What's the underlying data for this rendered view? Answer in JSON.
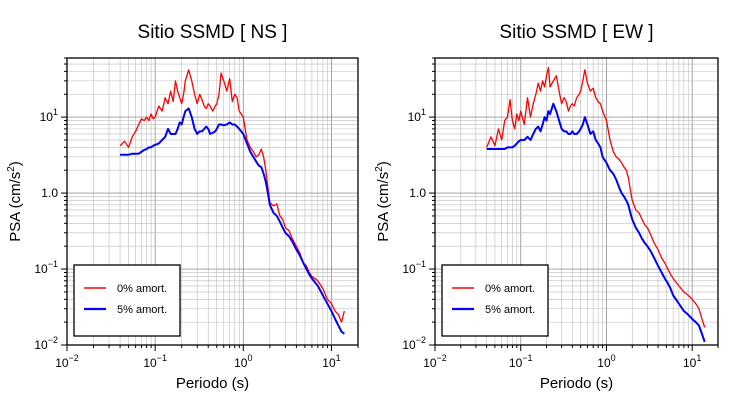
{
  "chart_data": [
    {
      "type": "line",
      "title": "Sitio SSMD [ NS ]",
      "xlabel": "Periodo (s)",
      "ylabel": "PSA (cm/s²)",
      "xscale": "log",
      "yscale": "log",
      "xlim": [
        0.01,
        20
      ],
      "ylim": [
        0.01,
        60
      ],
      "grid": true,
      "legend_position": "bottom-left",
      "xticks": [
        {
          "value": 0.01,
          "base": "10",
          "exp": "−2"
        },
        {
          "value": 0.1,
          "base": "10",
          "exp": "−1"
        },
        {
          "value": 1,
          "base": "10",
          "exp": "0"
        },
        {
          "value": 10,
          "base": "10",
          "exp": "1"
        }
      ],
      "yticks": [
        {
          "value": 0.01,
          "base": "10",
          "exp": "−2"
        },
        {
          "value": 0.1,
          "base": "10",
          "exp": "−1"
        },
        {
          "value": 1,
          "base": "1",
          "exp": ".0"
        },
        {
          "value": 10,
          "base": "10",
          "exp": "1"
        }
      ],
      "series": [
        {
          "name": "0% amort.",
          "color": "#ff0000",
          "x": [
            0.04,
            0.045,
            0.05,
            0.055,
            0.06,
            0.065,
            0.07,
            0.075,
            0.08,
            0.085,
            0.09,
            0.095,
            0.1,
            0.11,
            0.12,
            0.13,
            0.14,
            0.15,
            0.16,
            0.17,
            0.18,
            0.19,
            0.2,
            0.21,
            0.22,
            0.24,
            0.26,
            0.28,
            0.3,
            0.32,
            0.34,
            0.36,
            0.38,
            0.4,
            0.42,
            0.45,
            0.48,
            0.5,
            0.53,
            0.56,
            0.6,
            0.65,
            0.7,
            0.75,
            0.8,
            0.85,
            0.9,
            1.0,
            1.1,
            1.2,
            1.3,
            1.4,
            1.5,
            1.6,
            1.7,
            1.8,
            1.9,
            2.0,
            2.2,
            2.4,
            2.6,
            2.8,
            3.0,
            3.3,
            3.6,
            4.0,
            4.4,
            4.8,
            5.2,
            5.6,
            6.0,
            7.0,
            8.0,
            9.0,
            10.0,
            11.0,
            12.0,
            13.0,
            14.0
          ],
          "y": [
            4.2,
            4.8,
            4.0,
            5.5,
            6.5,
            8.0,
            9.5,
            9.0,
            10.0,
            9.0,
            11.0,
            9.5,
            10.0,
            14.0,
            12.0,
            18.0,
            15.0,
            22.0,
            16.0,
            30.0,
            22.0,
            18.0,
            15.0,
            20.0,
            30.0,
            42.0,
            30.0,
            20.0,
            15.0,
            20.0,
            17.0,
            14.0,
            13.0,
            15.0,
            14.0,
            12.0,
            14.0,
            15.0,
            20.0,
            38.0,
            30.0,
            22.0,
            32.0,
            16.0,
            20.0,
            18.0,
            12.0,
            10.0,
            5.0,
            4.0,
            3.5,
            3.0,
            3.2,
            3.8,
            3.0,
            2.0,
            1.2,
            0.75,
            0.68,
            0.72,
            0.5,
            0.45,
            0.35,
            0.32,
            0.25,
            0.2,
            0.16,
            0.12,
            0.11,
            0.09,
            0.08,
            0.07,
            0.055,
            0.04,
            0.035,
            0.028,
            0.025,
            0.02,
            0.028
          ]
        },
        {
          "name": "5% amort.",
          "color": "#0000ff",
          "x": [
            0.04,
            0.045,
            0.05,
            0.055,
            0.06,
            0.065,
            0.07,
            0.075,
            0.08,
            0.085,
            0.09,
            0.095,
            0.1,
            0.11,
            0.12,
            0.13,
            0.14,
            0.15,
            0.16,
            0.17,
            0.18,
            0.19,
            0.2,
            0.21,
            0.22,
            0.24,
            0.26,
            0.28,
            0.3,
            0.32,
            0.34,
            0.36,
            0.38,
            0.4,
            0.42,
            0.45,
            0.48,
            0.5,
            0.53,
            0.56,
            0.6,
            0.65,
            0.7,
            0.75,
            0.8,
            0.85,
            0.9,
            1.0,
            1.1,
            1.2,
            1.3,
            1.4,
            1.5,
            1.6,
            1.7,
            1.8,
            1.9,
            2.0,
            2.2,
            2.4,
            2.6,
            2.8,
            3.0,
            3.3,
            3.6,
            4.0,
            4.4,
            4.8,
            5.2,
            5.6,
            6.0,
            7.0,
            8.0,
            9.0,
            10.0,
            11.0,
            12.0,
            13.0,
            14.0
          ],
          "y": [
            3.2,
            3.2,
            3.2,
            3.3,
            3.3,
            3.3,
            3.5,
            3.7,
            3.8,
            4.0,
            4.0,
            4.2,
            4.3,
            4.5,
            5.0,
            5.5,
            7.0,
            6.0,
            6.0,
            6.0,
            7.0,
            8.5,
            8.0,
            10.0,
            12.0,
            13.0,
            10.0,
            7.0,
            6.0,
            6.5,
            6.5,
            7.0,
            7.5,
            7.0,
            6.0,
            6.2,
            6.5,
            7.0,
            8.0,
            8.0,
            7.8,
            8.0,
            8.5,
            8.0,
            8.0,
            7.5,
            7.0,
            6.0,
            4.5,
            3.5,
            3.0,
            2.6,
            2.3,
            2.2,
            1.8,
            1.4,
            1.0,
            0.7,
            0.55,
            0.5,
            0.42,
            0.35,
            0.3,
            0.27,
            0.23,
            0.18,
            0.15,
            0.12,
            0.1,
            0.085,
            0.075,
            0.06,
            0.045,
            0.035,
            0.028,
            0.022,
            0.018,
            0.015,
            0.014
          ]
        }
      ]
    },
    {
      "type": "line",
      "title": "Sitio SSMD [ EW ]",
      "xlabel": "Periodo (s)",
      "ylabel": "PSA (cm/s²)",
      "xscale": "log",
      "yscale": "log",
      "xlim": [
        0.01,
        20
      ],
      "ylim": [
        0.01,
        60
      ],
      "grid": true,
      "legend_position": "bottom-left",
      "xticks": [
        {
          "value": 0.01,
          "base": "10",
          "exp": "−2"
        },
        {
          "value": 0.1,
          "base": "10",
          "exp": "−1"
        },
        {
          "value": 1,
          "base": "10",
          "exp": "0"
        },
        {
          "value": 10,
          "base": "10",
          "exp": "1"
        }
      ],
      "yticks": [
        {
          "value": 0.01,
          "base": "10",
          "exp": "−2"
        },
        {
          "value": 0.1,
          "base": "10",
          "exp": "−1"
        },
        {
          "value": 1,
          "base": "1",
          "exp": ".0"
        },
        {
          "value": 10,
          "base": "10",
          "exp": "1"
        }
      ],
      "series": [
        {
          "name": "0% amort.",
          "color": "#ff0000",
          "x": [
            0.04,
            0.045,
            0.05,
            0.055,
            0.06,
            0.065,
            0.07,
            0.075,
            0.08,
            0.085,
            0.09,
            0.095,
            0.1,
            0.11,
            0.12,
            0.13,
            0.14,
            0.15,
            0.16,
            0.17,
            0.18,
            0.19,
            0.2,
            0.21,
            0.22,
            0.24,
            0.26,
            0.28,
            0.3,
            0.32,
            0.34,
            0.36,
            0.38,
            0.4,
            0.42,
            0.45,
            0.48,
            0.5,
            0.53,
            0.56,
            0.6,
            0.65,
            0.7,
            0.75,
            0.8,
            0.85,
            0.9,
            1.0,
            1.1,
            1.2,
            1.3,
            1.4,
            1.5,
            1.6,
            1.7,
            1.8,
            1.9,
            2.0,
            2.2,
            2.4,
            2.6,
            2.8,
            3.0,
            3.3,
            3.6,
            4.0,
            4.4,
            4.8,
            5.2,
            5.6,
            6.0,
            7.0,
            8.0,
            9.0,
            10.0,
            11.0,
            12.0,
            13.0,
            14.0
          ],
          "y": [
            4.0,
            5.5,
            4.2,
            7.0,
            5.0,
            9.0,
            10.0,
            17.0,
            9.0,
            7.0,
            11.0,
            9.0,
            12.0,
            8.0,
            18.0,
            10.0,
            15.0,
            20.0,
            28.0,
            22.0,
            30.0,
            25.0,
            35.0,
            45.0,
            25.0,
            30.0,
            35.0,
            22.0,
            15.0,
            18.0,
            16.0,
            12.0,
            14.0,
            15.0,
            14.0,
            18.0,
            20.0,
            22.0,
            30.0,
            42.0,
            28.0,
            22.0,
            24.0,
            18.0,
            16.0,
            15.0,
            12.0,
            9.0,
            5.0,
            3.5,
            3.0,
            2.8,
            2.5,
            2.2,
            2.0,
            1.6,
            1.1,
            0.8,
            0.6,
            0.55,
            0.45,
            0.38,
            0.35,
            0.28,
            0.22,
            0.18,
            0.14,
            0.12,
            0.1,
            0.085,
            0.075,
            0.06,
            0.05,
            0.045,
            0.04,
            0.035,
            0.03,
            0.022,
            0.017
          ]
        },
        {
          "name": "5% amort.",
          "color": "#0000ff",
          "x": [
            0.04,
            0.045,
            0.05,
            0.055,
            0.06,
            0.065,
            0.07,
            0.075,
            0.08,
            0.085,
            0.09,
            0.095,
            0.1,
            0.11,
            0.12,
            0.13,
            0.14,
            0.15,
            0.16,
            0.17,
            0.18,
            0.19,
            0.2,
            0.21,
            0.22,
            0.24,
            0.26,
            0.28,
            0.3,
            0.32,
            0.34,
            0.36,
            0.38,
            0.4,
            0.42,
            0.45,
            0.48,
            0.5,
            0.53,
            0.56,
            0.6,
            0.65,
            0.7,
            0.75,
            0.8,
            0.85,
            0.9,
            1.0,
            1.1,
            1.2,
            1.3,
            1.4,
            1.5,
            1.6,
            1.7,
            1.8,
            1.9,
            2.0,
            2.2,
            2.4,
            2.6,
            2.8,
            3.0,
            3.3,
            3.6,
            4.0,
            4.4,
            4.8,
            5.2,
            5.6,
            6.0,
            7.0,
            8.0,
            9.0,
            10.0,
            11.0,
            12.0,
            13.0,
            14.0
          ],
          "y": [
            3.8,
            3.8,
            3.8,
            3.8,
            3.8,
            3.8,
            4.0,
            4.0,
            4.0,
            4.2,
            4.5,
            4.8,
            5.0,
            5.0,
            5.5,
            5.0,
            6.0,
            7.0,
            7.5,
            6.5,
            8.0,
            10.0,
            9.0,
            12.0,
            11.0,
            15.0,
            12.0,
            9.0,
            7.0,
            6.5,
            6.5,
            6.0,
            6.0,
            6.5,
            6.0,
            6.0,
            6.5,
            7.0,
            8.0,
            10.0,
            8.0,
            6.0,
            6.5,
            5.0,
            4.5,
            4.0,
            3.0,
            2.5,
            2.0,
            1.8,
            1.5,
            1.2,
            1.0,
            0.9,
            0.8,
            0.7,
            0.55,
            0.45,
            0.35,
            0.3,
            0.25,
            0.22,
            0.2,
            0.17,
            0.14,
            0.11,
            0.09,
            0.075,
            0.065,
            0.055,
            0.045,
            0.035,
            0.028,
            0.025,
            0.022,
            0.02,
            0.018,
            0.014,
            0.011
          ]
        }
      ]
    }
  ]
}
